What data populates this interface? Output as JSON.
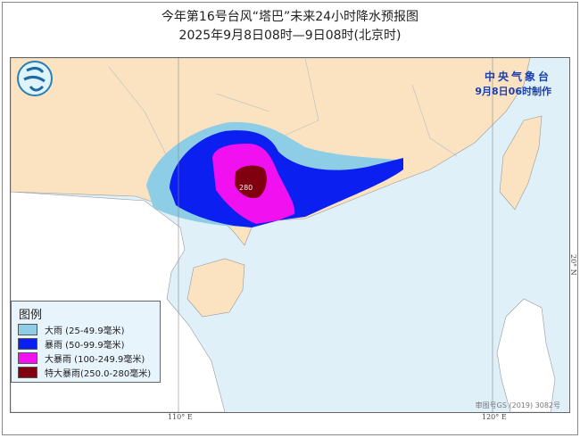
{
  "header": {
    "title": "今年第16号台风“塔巴”未来24小时降水预报图",
    "subtitle": "2025年9月8日08时—9日08时(北京时)"
  },
  "agency": {
    "name": "中央气象台",
    "made": "9月8日06时制作"
  },
  "legend": {
    "title": "图例",
    "items": [
      {
        "label": "大雨 (25-49.9毫米)",
        "color": "#8ecde6"
      },
      {
        "label": "暴雨 (50-99.9毫米)",
        "color": "#0a1ff0"
      },
      {
        "label": "大暴雨 (100-249.9毫米)",
        "color": "#f010f0"
      },
      {
        "label": "特大暴雨(250.0-280毫米)",
        "color": "#800010"
      }
    ]
  },
  "map": {
    "max_label": "280",
    "lon_labels": [
      "110° E",
      "120° E"
    ],
    "lat_label": "20° N",
    "review_no": "审图号GS (2019) 3082号",
    "colors": {
      "china_land": "#fbe3c2",
      "sea": "#dff0f8",
      "other_land": "#ffffff"
    }
  }
}
